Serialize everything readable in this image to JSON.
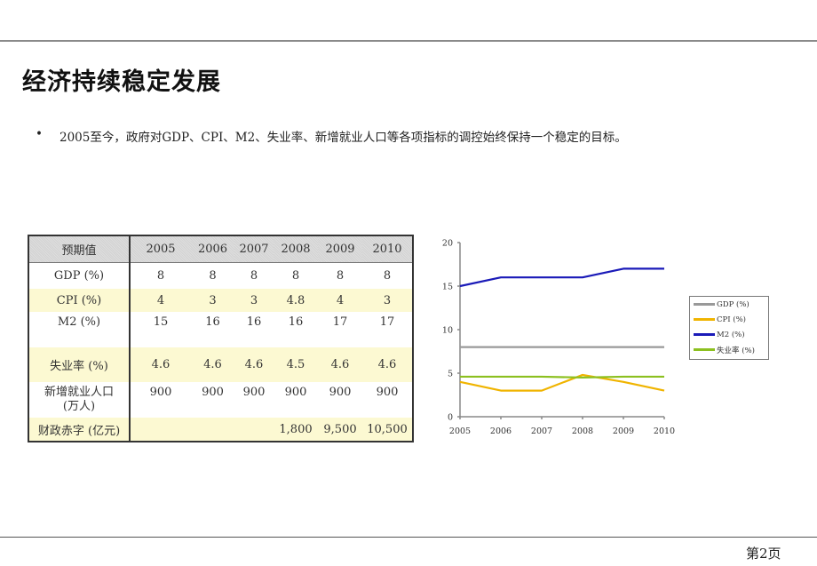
{
  "slide": {
    "title": "经济持续稳定发展",
    "bullet": "2005至今，政府对GDP、CPI、M2、失业率、新增就业人口等各项指标的调控始终保持一个稳定的目标。",
    "page_number": "第2页"
  },
  "table": {
    "header": [
      "预期值",
      "2005",
      "2006",
      "2007",
      "2008",
      "2009",
      "2010"
    ],
    "rows": [
      {
        "label": "GDP (%)",
        "values": [
          "8",
          "8",
          "8",
          "8",
          "8",
          "8"
        ]
      },
      {
        "label": "CPI (%)",
        "values": [
          "4",
          "3",
          "3",
          "4.8",
          "4",
          "3"
        ]
      },
      {
        "label": "M2 (%)",
        "values": [
          "15",
          "16",
          "16",
          "16",
          "17",
          "17"
        ]
      },
      {
        "label": "失业率 (%)",
        "values": [
          "4.6",
          "4.6",
          "4.6",
          "4.5",
          "4.6",
          "4.6"
        ]
      },
      {
        "label_line1": "新增就业人口",
        "label_line2": "(万人)",
        "values": [
          "900",
          "900",
          "900",
          "900",
          "900",
          "900"
        ]
      },
      {
        "label": "财政赤字 (亿元)",
        "values": [
          "",
          "",
          "",
          "1,800",
          "9,500",
          "10,500"
        ]
      }
    ]
  },
  "chart_data": {
    "type": "line",
    "title": "",
    "xlabel": "",
    "ylabel": "",
    "x": [
      "2005",
      "2006",
      "2007",
      "2008",
      "2009",
      "2010"
    ],
    "ylim": [
      0,
      20
    ],
    "yticks": [
      "0",
      "5",
      "10",
      "15",
      "20"
    ],
    "grid": false,
    "legend_position": "right",
    "series": [
      {
        "name": "GDP (%)",
        "color": "#999999",
        "values": [
          8,
          8,
          8,
          8,
          8,
          8
        ]
      },
      {
        "name": "CPI (%)",
        "color": "#f0b400",
        "values": [
          4,
          3,
          3,
          4.8,
          4,
          3
        ]
      },
      {
        "name": "M2 (%)",
        "color": "#1a1ab8",
        "values": [
          15,
          16,
          16,
          16,
          17,
          17
        ]
      },
      {
        "name": "失业率 (%)",
        "color": "#8cc020",
        "values": [
          4.6,
          4.6,
          4.6,
          4.5,
          4.6,
          4.6
        ]
      }
    ]
  }
}
